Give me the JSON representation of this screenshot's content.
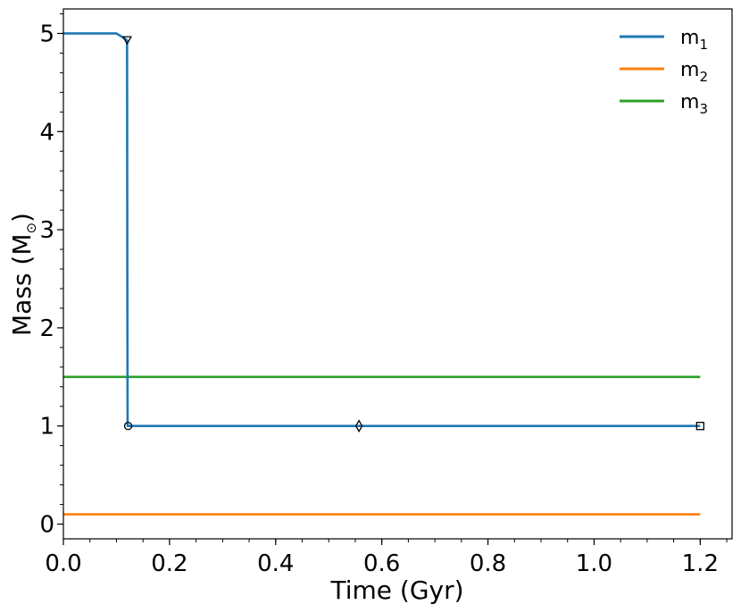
{
  "chart_data": {
    "type": "line",
    "xlabel": "Time (Gyr)",
    "ylabel_prefix": "Mass (M",
    "ylabel_sub": "⊙",
    "ylabel_suffix": ")",
    "xlim": [
      0.0,
      1.26
    ],
    "ylim": [
      -0.15,
      5.25
    ],
    "x_ticks": [
      0.0,
      0.2,
      0.4,
      0.6,
      0.8,
      1.0,
      1.2
    ],
    "x_tick_labels": [
      "0.0",
      "0.2",
      "0.4",
      "0.6",
      "0.8",
      "1.0",
      "1.2"
    ],
    "y_ticks": [
      0,
      1,
      2,
      3,
      4,
      5
    ],
    "y_tick_labels": [
      "0",
      "1",
      "2",
      "3",
      "4",
      "5"
    ],
    "x_minor_step": 0.05,
    "y_minor_step": 0.2,
    "grid": false,
    "legend_position": "top-right",
    "series": [
      {
        "name": "m",
        "subscript": "1",
        "color": "#1f77b4",
        "x": [
          0.0,
          0.1,
          0.115,
          0.12,
          0.1205,
          0.121,
          0.125,
          0.2,
          0.4,
          0.6,
          0.8,
          1.0,
          1.2
        ],
        "y": [
          5.0,
          5.0,
          4.95,
          4.93,
          2.5,
          1.0,
          1.0,
          1.0,
          1.0,
          1.0,
          1.0,
          1.0,
          1.0
        ]
      },
      {
        "name": "m",
        "subscript": "2",
        "color": "#ff7f0e",
        "x": [
          0.0,
          1.2
        ],
        "y": [
          0.1,
          0.1
        ]
      },
      {
        "name": "m",
        "subscript": "3",
        "color": "#2ca02c",
        "x": [
          0.0,
          1.2
        ],
        "y": [
          1.5,
          1.5
        ]
      }
    ],
    "markers": [
      {
        "shape": "triangle-down",
        "x": 0.12,
        "y": 4.93
      },
      {
        "shape": "circle",
        "x": 0.122,
        "y": 1.0
      },
      {
        "shape": "diamond",
        "x": 0.557,
        "y": 1.0
      },
      {
        "shape": "square",
        "x": 1.2,
        "y": 1.0
      }
    ]
  }
}
